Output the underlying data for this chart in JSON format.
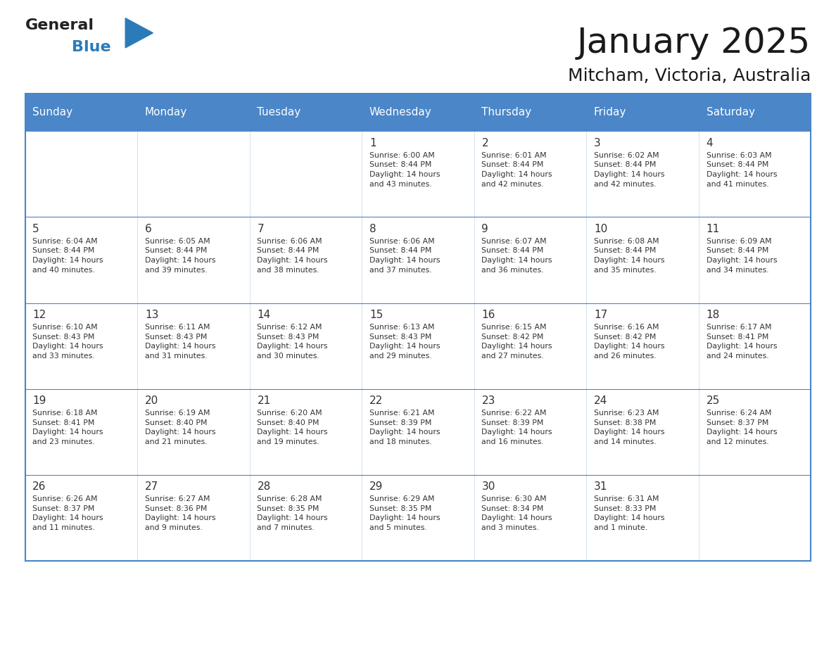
{
  "title": "January 2025",
  "subtitle": "Mitcham, Victoria, Australia",
  "header_bg_color": "#4A86C8",
  "header_text_color": "#FFFFFF",
  "cell_bg_color": "#FFFFFF",
  "border_color": "#4A86C8",
  "text_color": "#333333",
  "day_headers": [
    "Sunday",
    "Monday",
    "Tuesday",
    "Wednesday",
    "Thursday",
    "Friday",
    "Saturday"
  ],
  "logo_general_color": "#222222",
  "logo_blue_color": "#2B7BB9",
  "calendar_data": [
    [
      {
        "day": "",
        "info": ""
      },
      {
        "day": "",
        "info": ""
      },
      {
        "day": "",
        "info": ""
      },
      {
        "day": "1",
        "info": "Sunrise: 6:00 AM\nSunset: 8:44 PM\nDaylight: 14 hours\nand 43 minutes."
      },
      {
        "day": "2",
        "info": "Sunrise: 6:01 AM\nSunset: 8:44 PM\nDaylight: 14 hours\nand 42 minutes."
      },
      {
        "day": "3",
        "info": "Sunrise: 6:02 AM\nSunset: 8:44 PM\nDaylight: 14 hours\nand 42 minutes."
      },
      {
        "day": "4",
        "info": "Sunrise: 6:03 AM\nSunset: 8:44 PM\nDaylight: 14 hours\nand 41 minutes."
      }
    ],
    [
      {
        "day": "5",
        "info": "Sunrise: 6:04 AM\nSunset: 8:44 PM\nDaylight: 14 hours\nand 40 minutes."
      },
      {
        "day": "6",
        "info": "Sunrise: 6:05 AM\nSunset: 8:44 PM\nDaylight: 14 hours\nand 39 minutes."
      },
      {
        "day": "7",
        "info": "Sunrise: 6:06 AM\nSunset: 8:44 PM\nDaylight: 14 hours\nand 38 minutes."
      },
      {
        "day": "8",
        "info": "Sunrise: 6:06 AM\nSunset: 8:44 PM\nDaylight: 14 hours\nand 37 minutes."
      },
      {
        "day": "9",
        "info": "Sunrise: 6:07 AM\nSunset: 8:44 PM\nDaylight: 14 hours\nand 36 minutes."
      },
      {
        "day": "10",
        "info": "Sunrise: 6:08 AM\nSunset: 8:44 PM\nDaylight: 14 hours\nand 35 minutes."
      },
      {
        "day": "11",
        "info": "Sunrise: 6:09 AM\nSunset: 8:44 PM\nDaylight: 14 hours\nand 34 minutes."
      }
    ],
    [
      {
        "day": "12",
        "info": "Sunrise: 6:10 AM\nSunset: 8:43 PM\nDaylight: 14 hours\nand 33 minutes."
      },
      {
        "day": "13",
        "info": "Sunrise: 6:11 AM\nSunset: 8:43 PM\nDaylight: 14 hours\nand 31 minutes."
      },
      {
        "day": "14",
        "info": "Sunrise: 6:12 AM\nSunset: 8:43 PM\nDaylight: 14 hours\nand 30 minutes."
      },
      {
        "day": "15",
        "info": "Sunrise: 6:13 AM\nSunset: 8:43 PM\nDaylight: 14 hours\nand 29 minutes."
      },
      {
        "day": "16",
        "info": "Sunrise: 6:15 AM\nSunset: 8:42 PM\nDaylight: 14 hours\nand 27 minutes."
      },
      {
        "day": "17",
        "info": "Sunrise: 6:16 AM\nSunset: 8:42 PM\nDaylight: 14 hours\nand 26 minutes."
      },
      {
        "day": "18",
        "info": "Sunrise: 6:17 AM\nSunset: 8:41 PM\nDaylight: 14 hours\nand 24 minutes."
      }
    ],
    [
      {
        "day": "19",
        "info": "Sunrise: 6:18 AM\nSunset: 8:41 PM\nDaylight: 14 hours\nand 23 minutes."
      },
      {
        "day": "20",
        "info": "Sunrise: 6:19 AM\nSunset: 8:40 PM\nDaylight: 14 hours\nand 21 minutes."
      },
      {
        "day": "21",
        "info": "Sunrise: 6:20 AM\nSunset: 8:40 PM\nDaylight: 14 hours\nand 19 minutes."
      },
      {
        "day": "22",
        "info": "Sunrise: 6:21 AM\nSunset: 8:39 PM\nDaylight: 14 hours\nand 18 minutes."
      },
      {
        "day": "23",
        "info": "Sunrise: 6:22 AM\nSunset: 8:39 PM\nDaylight: 14 hours\nand 16 minutes."
      },
      {
        "day": "24",
        "info": "Sunrise: 6:23 AM\nSunset: 8:38 PM\nDaylight: 14 hours\nand 14 minutes."
      },
      {
        "day": "25",
        "info": "Sunrise: 6:24 AM\nSunset: 8:37 PM\nDaylight: 14 hours\nand 12 minutes."
      }
    ],
    [
      {
        "day": "26",
        "info": "Sunrise: 6:26 AM\nSunset: 8:37 PM\nDaylight: 14 hours\nand 11 minutes."
      },
      {
        "day": "27",
        "info": "Sunrise: 6:27 AM\nSunset: 8:36 PM\nDaylight: 14 hours\nand 9 minutes."
      },
      {
        "day": "28",
        "info": "Sunrise: 6:28 AM\nSunset: 8:35 PM\nDaylight: 14 hours\nand 7 minutes."
      },
      {
        "day": "29",
        "info": "Sunrise: 6:29 AM\nSunset: 8:35 PM\nDaylight: 14 hours\nand 5 minutes."
      },
      {
        "day": "30",
        "info": "Sunrise: 6:30 AM\nSunset: 8:34 PM\nDaylight: 14 hours\nand 3 minutes."
      },
      {
        "day": "31",
        "info": "Sunrise: 6:31 AM\nSunset: 8:33 PM\nDaylight: 14 hours\nand 1 minute."
      },
      {
        "day": "",
        "info": ""
      }
    ]
  ]
}
